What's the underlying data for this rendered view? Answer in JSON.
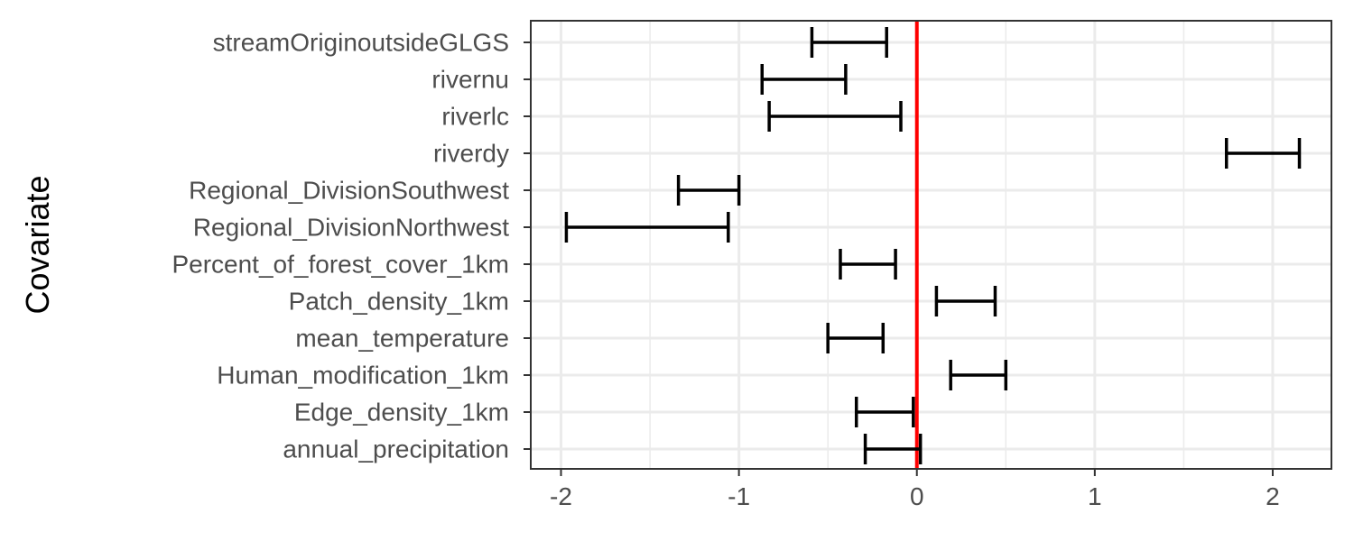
{
  "chart_data": {
    "type": "errorbar",
    "ylabel": "Covariate",
    "xlabel": "",
    "xlim": [
      -2.17,
      2.33
    ],
    "x_ticks": [
      -2,
      -1,
      0,
      1,
      2
    ],
    "x_tick_labels": [
      "-2",
      "-1",
      "0",
      "1",
      "2"
    ],
    "reference_line": {
      "x": 0,
      "color": "#ff0000"
    },
    "grid": true,
    "categories": [
      "streamOriginoutsideGLGS",
      "rivernu",
      "riverlc",
      "riverdy",
      "Regional_DivisionSouthwest",
      "Regional_DivisionNorthwest",
      "Percent_of_forest_cover_1km",
      "Patch_density_1km",
      "mean_temperature",
      "Human_modification_1km",
      "Edge_density_1km",
      "annual_precipitation"
    ],
    "intervals": [
      {
        "low": -0.59,
        "high": -0.17
      },
      {
        "low": -0.87,
        "high": -0.4
      },
      {
        "low": -0.83,
        "high": -0.09
      },
      {
        "low": 1.74,
        "high": 2.15
      },
      {
        "low": -1.34,
        "high": -1.0
      },
      {
        "low": -1.97,
        "high": -1.06
      },
      {
        "low": -0.43,
        "high": -0.12
      },
      {
        "low": 0.11,
        "high": 0.44
      },
      {
        "low": -0.5,
        "high": -0.19
      },
      {
        "low": 0.19,
        "high": 0.5
      },
      {
        "low": -0.34,
        "high": -0.02
      },
      {
        "low": -0.29,
        "high": 0.02
      }
    ],
    "colors": {
      "errorbar": "#000000",
      "reference": "#ff0000",
      "grid": "#ebebeb",
      "panel_border": "#333333"
    }
  }
}
